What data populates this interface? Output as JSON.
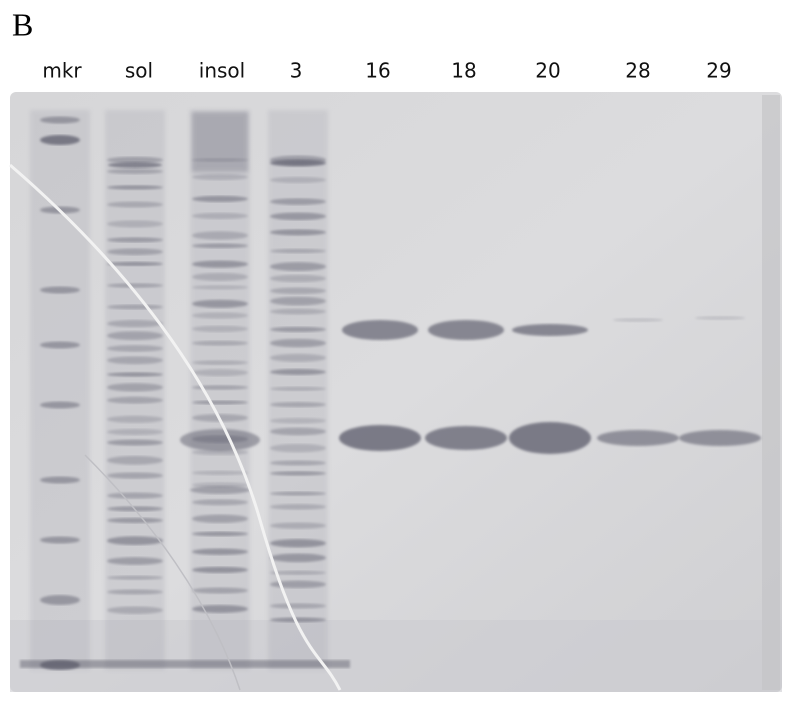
{
  "panel_label": "B",
  "lanes": [
    "mkr",
    "sol",
    "insol",
    "3",
    "16",
    "18",
    "20",
    "28",
    "29"
  ]
}
